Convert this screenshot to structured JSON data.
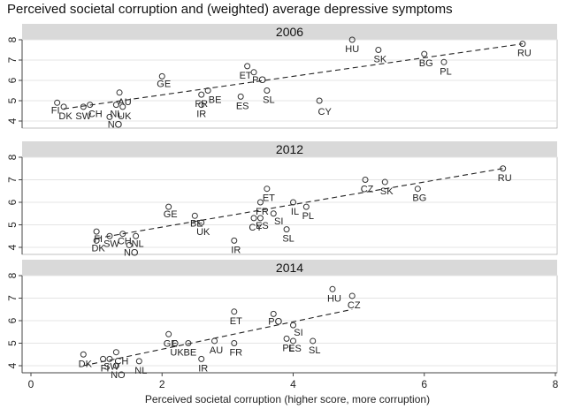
{
  "chart_data": {
    "type": "scatter",
    "title": "Perceived societal corruption and (weighted) average depressive symptoms",
    "xlabel": "Perceived societal corruption (higher score, more corruption)",
    "ylabel": "",
    "xlim": [
      0,
      8
    ],
    "ylim": [
      4,
      8
    ],
    "x_ticks": [
      "0",
      "2",
      "4",
      "6",
      "8"
    ],
    "y_ticks": [
      "4",
      "5",
      "6",
      "7",
      "8"
    ],
    "grid": true,
    "colors": {
      "strip": "#d9d9d9",
      "background": "#ffffff",
      "points": "#333333",
      "fit": "#222222"
    },
    "panels": [
      {
        "label": "2006",
        "fit": {
          "x": [
            0.5,
            7.5
          ],
          "y": [
            4.6,
            7.8
          ]
        },
        "points": [
          {
            "x": 0.4,
            "y": 4.9,
            "label": "FI"
          },
          {
            "x": 0.5,
            "y": 4.7,
            "label": "DK"
          },
          {
            "x": 0.8,
            "y": 4.7,
            "label": "SW"
          },
          {
            "x": 0.9,
            "y": 4.8,
            "label": "CH"
          },
          {
            "x": 1.2,
            "y": 4.2,
            "label": "NO"
          },
          {
            "x": 1.3,
            "y": 4.8,
            "label": "NL"
          },
          {
            "x": 1.35,
            "y": 5.4,
            "label": "AU"
          },
          {
            "x": 1.4,
            "y": 4.7,
            "label": "UK"
          },
          {
            "x": 2.0,
            "y": 6.2,
            "label": "GE"
          },
          {
            "x": 2.6,
            "y": 5.3,
            "label": "FR"
          },
          {
            "x": 2.7,
            "y": 5.5,
            "label": "BE"
          },
          {
            "x": 2.6,
            "y": 4.8,
            "label": "IR"
          },
          {
            "x": 3.2,
            "y": 5.2,
            "label": "ES"
          },
          {
            "x": 3.3,
            "y": 6.7,
            "label": "ET"
          },
          {
            "x": 3.4,
            "y": 6.4,
            "label": "PO"
          },
          {
            "x": 3.6,
            "y": 5.5,
            "label": "SL"
          },
          {
            "x": 4.4,
            "y": 5.0,
            "label": "CY"
          },
          {
            "x": 4.9,
            "y": 8.0,
            "label": "HU"
          },
          {
            "x": 5.3,
            "y": 7.5,
            "label": "SK"
          },
          {
            "x": 6.0,
            "y": 7.3,
            "label": "BG"
          },
          {
            "x": 6.3,
            "y": 6.9,
            "label": "PL"
          },
          {
            "x": 7.5,
            "y": 7.8,
            "label": "RU"
          }
        ]
      },
      {
        "label": "2012",
        "fit": {
          "x": [
            1.0,
            7.2
          ],
          "y": [
            4.4,
            7.5
          ]
        },
        "points": [
          {
            "x": 1.0,
            "y": 4.7,
            "label": "FI"
          },
          {
            "x": 1.0,
            "y": 4.3,
            "label": "DK"
          },
          {
            "x": 1.2,
            "y": 4.5,
            "label": "SW"
          },
          {
            "x": 1.4,
            "y": 4.6,
            "label": "CH"
          },
          {
            "x": 1.5,
            "y": 4.1,
            "label": "NO"
          },
          {
            "x": 1.6,
            "y": 4.5,
            "label": "NL"
          },
          {
            "x": 2.1,
            "y": 5.8,
            "label": "GE"
          },
          {
            "x": 2.5,
            "y": 5.4,
            "label": "BE"
          },
          {
            "x": 2.6,
            "y": 5.1,
            "label": "UK"
          },
          {
            "x": 3.1,
            "y": 4.3,
            "label": "IR"
          },
          {
            "x": 3.4,
            "y": 5.3,
            "label": "CY"
          },
          {
            "x": 3.5,
            "y": 5.3,
            "label": "ES"
          },
          {
            "x": 3.5,
            "y": 6.0,
            "label": "FR"
          },
          {
            "x": 3.6,
            "y": 6.6,
            "label": "ET"
          },
          {
            "x": 3.7,
            "y": 5.5,
            "label": "SI"
          },
          {
            "x": 3.9,
            "y": 4.8,
            "label": "SL"
          },
          {
            "x": 4.0,
            "y": 6.0,
            "label": "IL"
          },
          {
            "x": 4.2,
            "y": 5.8,
            "label": "PL"
          },
          {
            "x": 5.1,
            "y": 7.0,
            "label": "CZ"
          },
          {
            "x": 5.4,
            "y": 6.9,
            "label": "SK"
          },
          {
            "x": 5.9,
            "y": 6.6,
            "label": "BG"
          },
          {
            "x": 7.2,
            "y": 7.5,
            "label": "RU"
          }
        ]
      },
      {
        "label": "2014",
        "fit": {
          "x": [
            0.8,
            4.9
          ],
          "y": [
            4.0,
            6.5
          ]
        },
        "points": [
          {
            "x": 0.8,
            "y": 4.5,
            "label": "DK"
          },
          {
            "x": 1.1,
            "y": 4.3,
            "label": "FI"
          },
          {
            "x": 1.2,
            "y": 4.3,
            "label": "SW"
          },
          {
            "x": 1.3,
            "y": 4.6,
            "label": "CH"
          },
          {
            "x": 1.3,
            "y": 4.0,
            "label": "NO"
          },
          {
            "x": 1.65,
            "y": 4.2,
            "label": "NL"
          },
          {
            "x": 2.1,
            "y": 5.4,
            "label": "GE"
          },
          {
            "x": 2.2,
            "y": 5.0,
            "label": "UK"
          },
          {
            "x": 2.4,
            "y": 5.0,
            "label": "BE"
          },
          {
            "x": 2.6,
            "y": 4.3,
            "label": "IR"
          },
          {
            "x": 2.8,
            "y": 5.1,
            "label": "AU"
          },
          {
            "x": 3.1,
            "y": 6.4,
            "label": "ET"
          },
          {
            "x": 3.1,
            "y": 5.0,
            "label": "FR"
          },
          {
            "x": 3.7,
            "y": 6.3,
            "label": "PO"
          },
          {
            "x": 3.9,
            "y": 5.2,
            "label": "PL"
          },
          {
            "x": 4.0,
            "y": 5.1,
            "label": "ES"
          },
          {
            "x": 4.0,
            "y": 5.8,
            "label": "SI"
          },
          {
            "x": 4.3,
            "y": 5.1,
            "label": "SL"
          },
          {
            "x": 4.6,
            "y": 7.4,
            "label": "HU"
          },
          {
            "x": 4.9,
            "y": 7.1,
            "label": "CZ"
          }
        ]
      }
    ]
  }
}
